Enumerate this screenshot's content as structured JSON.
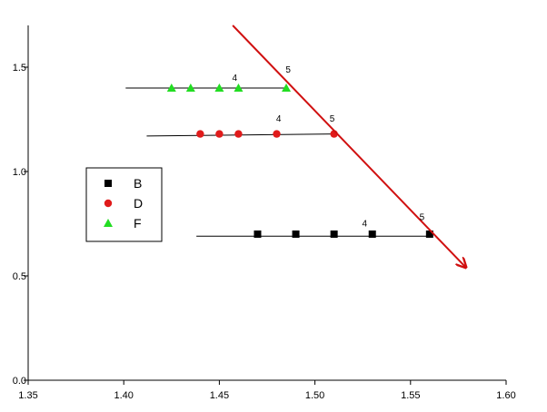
{
  "chart_data": {
    "type": "scatter",
    "xlim": [
      1.35,
      1.6
    ],
    "ylim": [
      0,
      1.7
    ],
    "xticks": [
      1.35,
      {
        "value": 1.4,
        "label": "1.40"
      },
      1.45,
      {
        "value": 1.5,
        "label": "1.50"
      },
      1.55,
      {
        "value": 1.6,
        "label": "1.60"
      }
    ],
    "yticks": [
      {
        "value": 0,
        "label": "0.0"
      },
      0.5,
      {
        "value": 1,
        "label": "1.0"
      },
      1.5
    ],
    "series": [
      {
        "name": "B",
        "color": "#000000",
        "marker": "square",
        "x": [
          1.47,
          1.49,
          1.51,
          1.53,
          1.56
        ],
        "values": [
          0.7,
          0.7,
          0.7,
          0.7,
          0.7
        ],
        "line_x": [
          1.438,
          1.56
        ],
        "line_y": [
          0.69,
          0.69
        ]
      },
      {
        "name": "D",
        "color": "#e01b1b",
        "marker": "circle",
        "x": [
          1.44,
          1.45,
          1.46,
          1.48,
          1.51
        ],
        "values": [
          1.18,
          1.18,
          1.18,
          1.18,
          1.18
        ],
        "line_x": [
          1.412,
          1.51
        ],
        "line_y": [
          1.17,
          1.18
        ]
      },
      {
        "name": "F",
        "color": "#22dd22",
        "marker": "triangle",
        "x": [
          1.425,
          1.435,
          1.45,
          1.46,
          1.485
        ],
        "values": [
          1.4,
          1.4,
          1.4,
          1.4,
          1.4
        ],
        "line_x": [
          1.401,
          1.485
        ],
        "line_y": [
          1.4,
          1.4
        ]
      }
    ],
    "trend": {
      "color": "#d01010",
      "x": [
        1.457,
        1.579
      ],
      "values": [
        1.7,
        0.54
      ]
    },
    "annotations": [
      {
        "text": "4",
        "x": 1.458,
        "y": 1.435
      },
      {
        "text": "5",
        "x": 1.486,
        "y": 1.474
      },
      {
        "text": "4",
        "x": 1.481,
        "y": 1.24
      },
      {
        "text": "5",
        "x": 1.509,
        "y": 1.24
      },
      {
        "text": "4",
        "x": 1.526,
        "y": 0.737
      },
      {
        "text": "5",
        "x": 1.556,
        "y": 0.768
      }
    ]
  }
}
